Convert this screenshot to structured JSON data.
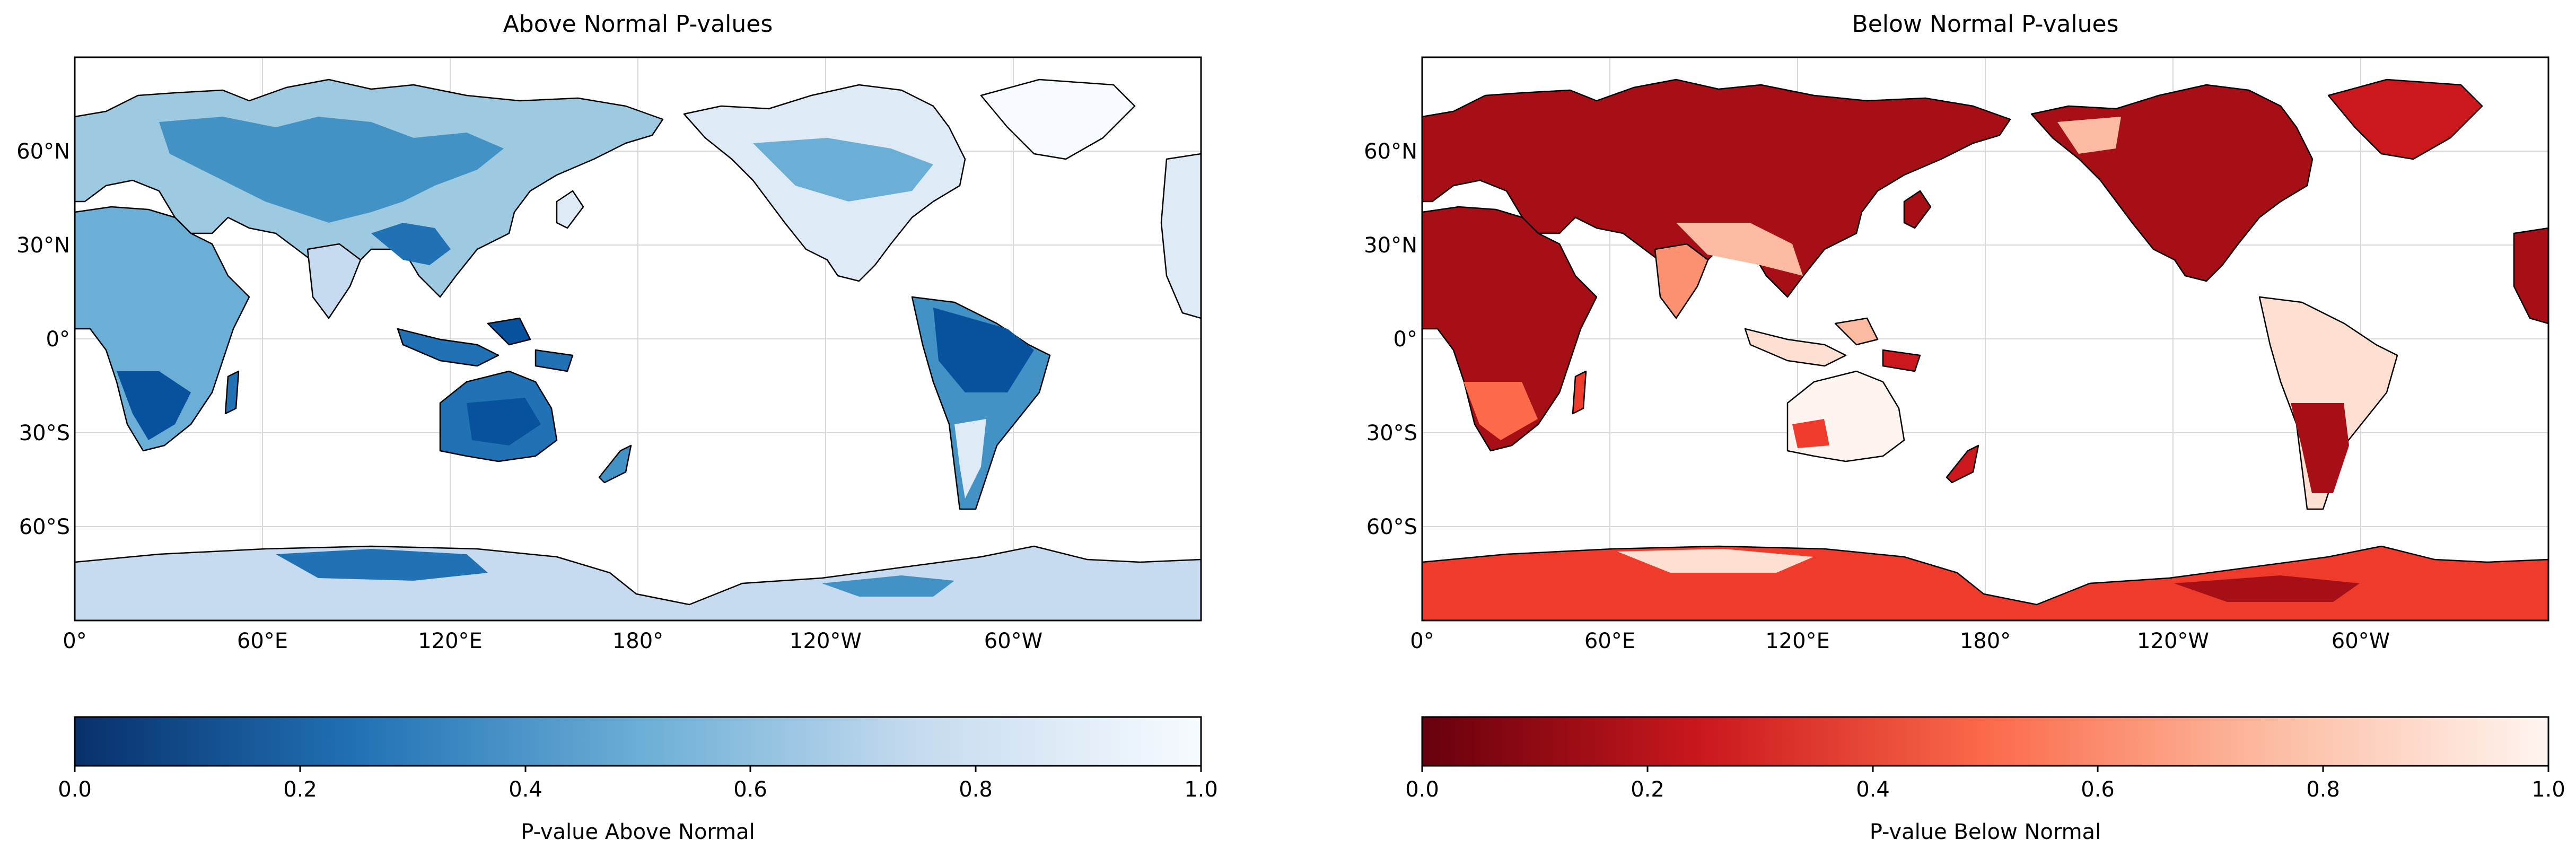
{
  "panels": [
    {
      "title": "Above Normal P-values",
      "colorbar_label": "P-value Above Normal",
      "colormap": "Blues_r",
      "color_low": "#08306b",
      "color_high": "#f7fbff",
      "lat_ticks": [
        "60°N",
        "30°N",
        "0°",
        "30°S",
        "60°S"
      ],
      "lon_ticks": [
        "0°",
        "60°E",
        "120°E",
        "180°",
        "120°W",
        "60°W"
      ],
      "colorbar_ticks": [
        "0.0",
        "0.2",
        "0.4",
        "0.6",
        "0.8",
        "1.0"
      ]
    },
    {
      "title": "Below Normal P-values",
      "colorbar_label": "P-value Below Normal",
      "colormap": "Reds_r",
      "color_low": "#67000d",
      "color_high": "#fff5f0",
      "lat_ticks": [
        "60°N",
        "30°N",
        "0°",
        "30°S",
        "60°S"
      ],
      "lon_ticks": [
        "0°",
        "60°E",
        "120°E",
        "180°",
        "120°W",
        "60°W"
      ],
      "colorbar_ticks": [
        "0.0",
        "0.2",
        "0.4",
        "0.6",
        "0.8",
        "1.0"
      ]
    }
  ]
}
